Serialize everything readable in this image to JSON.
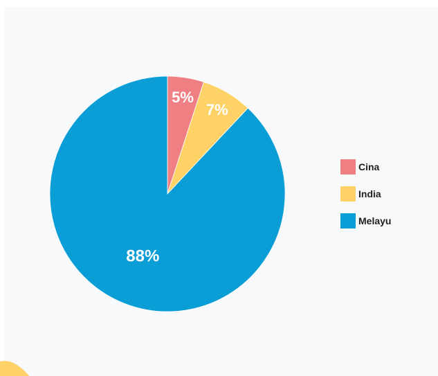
{
  "chart_data": {
    "type": "pie",
    "title": "",
    "series": [
      {
        "name": "Cina",
        "value": 5,
        "label": "5%",
        "color": "#f07f84"
      },
      {
        "name": "India",
        "value": 7,
        "label": "7%",
        "color": "#fed266"
      },
      {
        "name": "Melayu",
        "value": 88,
        "label": "88%",
        "color": "#0a9dd6"
      }
    ],
    "legend_placement": "right"
  },
  "colors": {
    "panel_background": "#f8f9fb",
    "accent_corner": "#fed266"
  }
}
